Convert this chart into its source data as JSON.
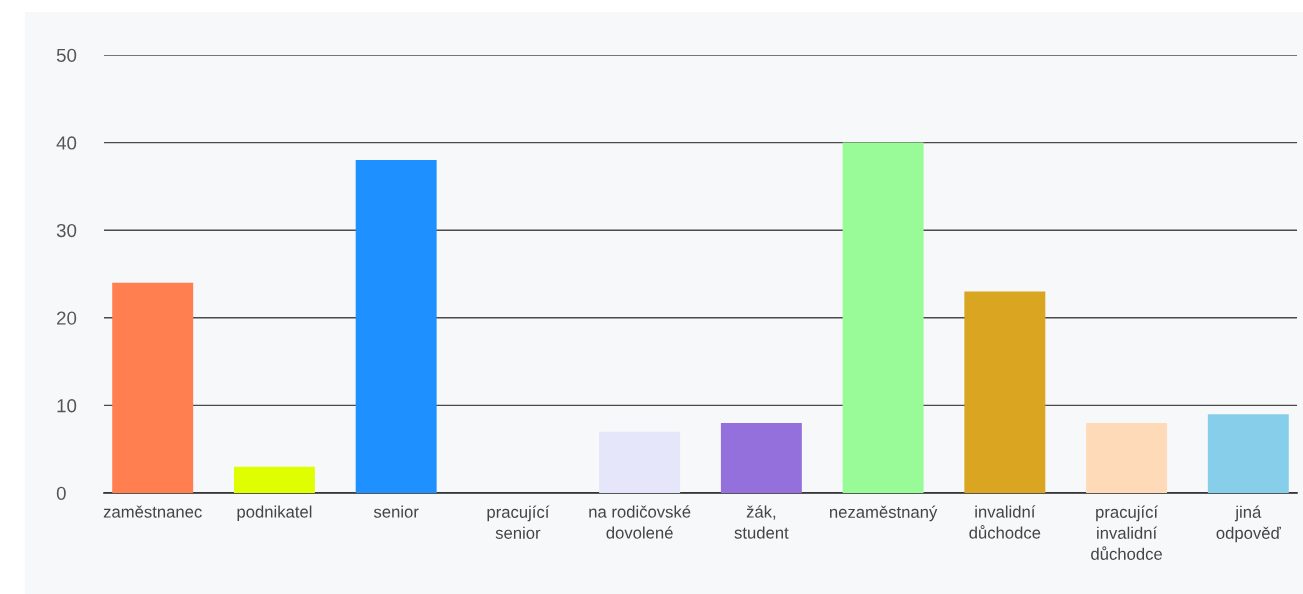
{
  "chart_data": {
    "type": "bar",
    "categories": [
      "zaměstnanec",
      "podnikatel",
      "senior",
      "pracující\nsenior",
      "na rodičovské\ndovolené",
      "žák,\nstudent",
      "nezaměstnaný",
      "invalidní\ndůchodce",
      "pracující\ninvalidní\ndůchodce",
      "jiná\nodpověď"
    ],
    "values": [
      24,
      3,
      38,
      0,
      7,
      8,
      40,
      23,
      8,
      9
    ],
    "colors": [
      "#ff7f50",
      "#dfff00",
      "#1e90ff",
      null,
      "#e6e6fa",
      "#9370db",
      "#98fb98",
      "#daa520",
      "#ffdab9",
      "#87ceeb"
    ],
    "ylim": [
      0,
      50
    ],
    "yticks": [
      0,
      10,
      20,
      30,
      40,
      50
    ],
    "grid": "y",
    "legend": false
  }
}
